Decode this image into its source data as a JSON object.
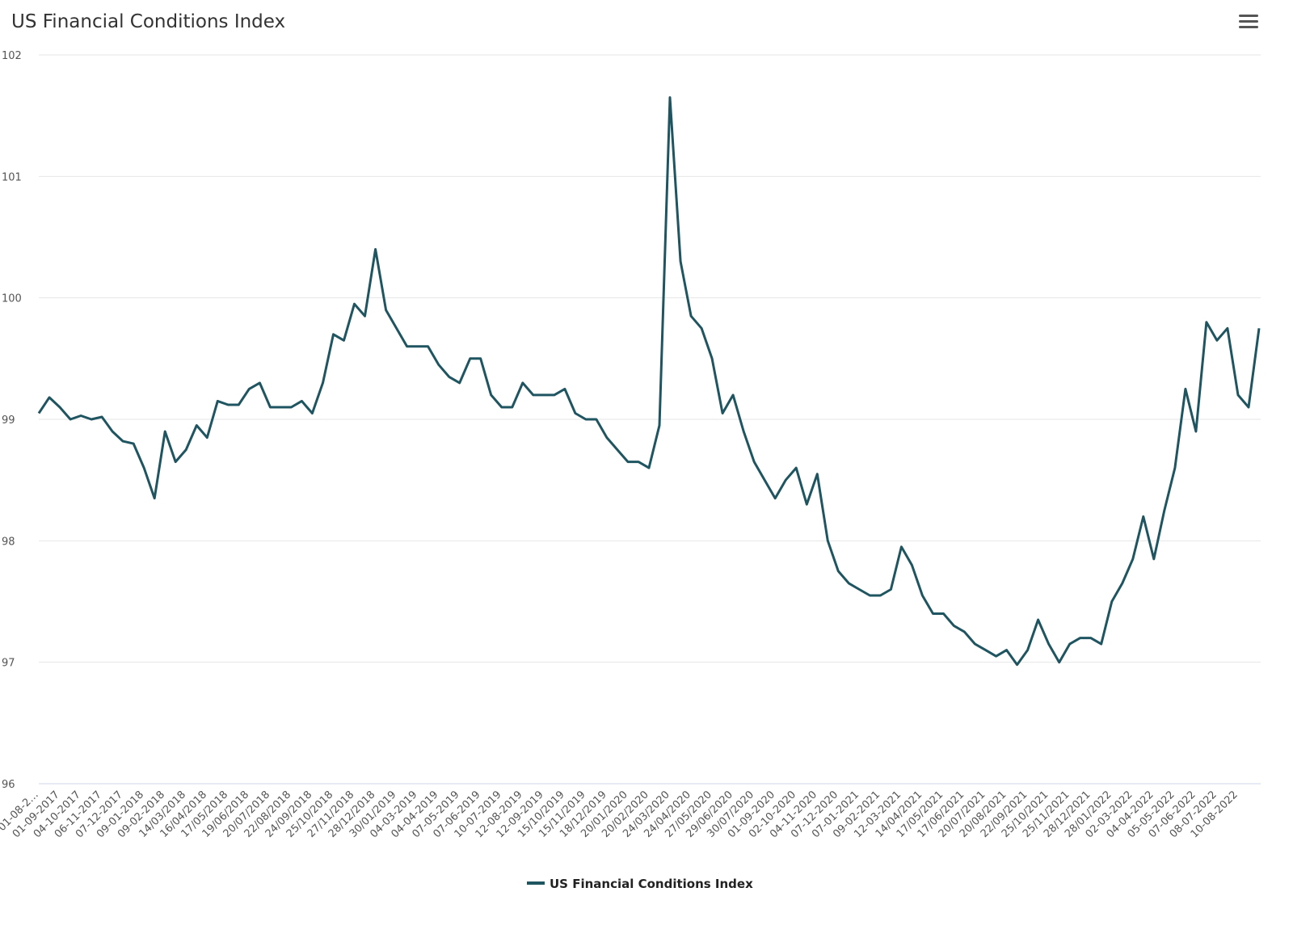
{
  "chart_data": {
    "type": "line",
    "title": "US Financial Conditions Index",
    "categories": [
      "01-08-2…",
      null,
      "01-09-2017",
      null,
      "04-10-2017",
      null,
      "06-11-2017",
      null,
      "07-12-2017",
      null,
      "09-01-2018",
      null,
      "09-02-2018",
      null,
      "14/03/2018",
      null,
      "16/04/2018",
      null,
      "17/05/2018",
      null,
      "19/06/2018",
      null,
      "20/07/2018",
      null,
      "22/08/2018",
      null,
      "24/09/2018",
      null,
      "25/10/2018",
      null,
      "27/11/2018",
      null,
      "28/12/2018",
      null,
      "30/01/2019",
      null,
      "04-03-2019",
      null,
      "04-04-2019",
      null,
      "07-05-2019",
      null,
      "07-06-2019",
      null,
      "10-07-2019",
      null,
      "12-08-2019",
      null,
      "12-09-2019",
      null,
      "15/10/2019",
      null,
      "15/11/2019",
      null,
      "18/12/2019",
      null,
      "20/01/2020",
      null,
      "20/02/2020",
      null,
      "24/03/2020",
      null,
      "24/04/2020",
      null,
      "27/05/2020",
      null,
      "29/06/2020",
      null,
      "30/07/2020",
      null,
      "01-09-2020",
      null,
      "02-10-2020",
      null,
      "04-11-2020",
      null,
      "07-12-2020",
      null,
      "07-01-2021",
      null,
      "09-02-2021",
      null,
      "12-03-2021",
      null,
      "14/04/2021",
      null,
      "17/05/2021",
      null,
      "17/06/2021",
      null,
      "20/07/2021",
      null,
      "20/08/2021",
      null,
      "22/09/2021",
      null,
      "25/10/2021",
      null,
      "25/11/2021",
      null,
      "28/12/2021",
      null,
      "28/01/2022",
      null,
      "02-03-2022",
      null,
      "04-04-2022",
      null,
      "05-05-2022",
      null,
      "07-06-2022",
      null,
      "08-07-2022",
      null,
      "10-08-2022",
      null,
      null
    ],
    "series": [
      {
        "name": "US Financial Conditions Index",
        "color": "#1f5560",
        "values": [
          99.05,
          99.18,
          99.1,
          99.0,
          99.03,
          99.0,
          99.02,
          98.9,
          98.82,
          98.8,
          98.6,
          98.35,
          98.9,
          98.65,
          98.75,
          98.95,
          98.85,
          99.15,
          99.12,
          99.12,
          99.25,
          99.3,
          99.1,
          99.1,
          99.1,
          99.15,
          99.05,
          99.3,
          99.7,
          99.65,
          99.95,
          99.85,
          100.4,
          99.9,
          99.75,
          99.6,
          99.6,
          99.6,
          99.45,
          99.35,
          99.3,
          99.5,
          99.5,
          99.2,
          99.1,
          99.1,
          99.3,
          99.2,
          99.2,
          99.2,
          99.25,
          99.05,
          99.0,
          99.0,
          98.85,
          98.75,
          98.65,
          98.65,
          98.6,
          98.95,
          101.65,
          100.3,
          99.85,
          99.75,
          99.5,
          99.05,
          99.2,
          98.9,
          98.65,
          98.5,
          98.35,
          98.5,
          98.6,
          98.3,
          98.55,
          98.0,
          97.75,
          97.65,
          97.6,
          97.55,
          97.55,
          97.6,
          97.95,
          97.8,
          97.55,
          97.4,
          97.4,
          97.3,
          97.25,
          97.15,
          97.1,
          97.05,
          97.1,
          96.98,
          97.1,
          97.35,
          97.15,
          97.0,
          97.15,
          97.2,
          97.2,
          97.15,
          97.5,
          97.65,
          97.85,
          98.2,
          97.85,
          98.25,
          98.6,
          99.25,
          98.9,
          99.8,
          99.65,
          99.75,
          99.2,
          99.1,
          99.75
        ]
      }
    ],
    "ylim": [
      96,
      102
    ],
    "yticks": [
      96,
      97,
      98,
      99,
      100,
      101,
      102
    ],
    "grid": true
  }
}
